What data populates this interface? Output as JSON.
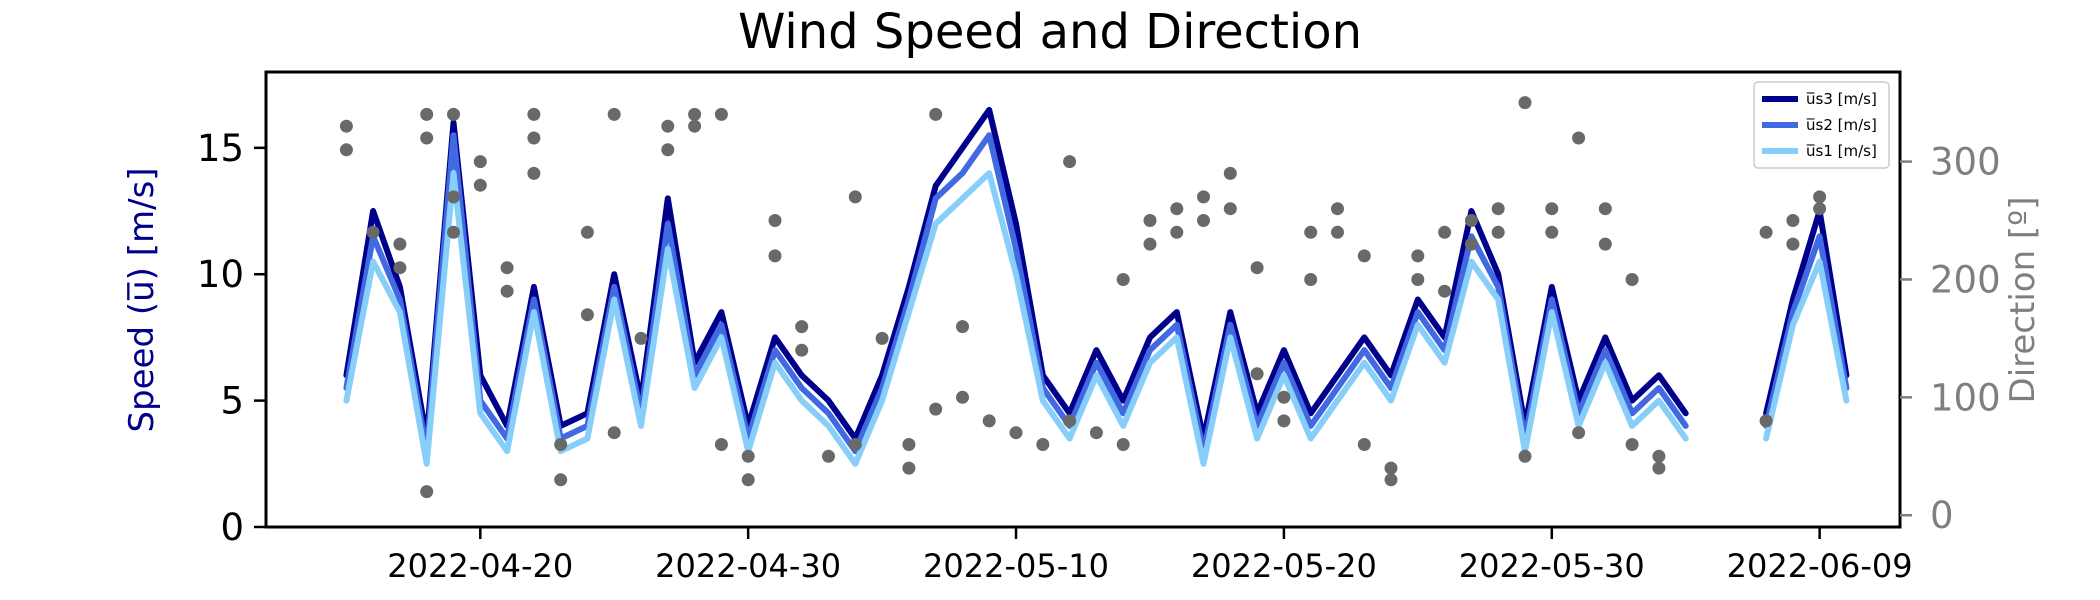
{
  "chart_data": {
    "type": "line",
    "title": "Wind Speed and Direction",
    "xlabel": "",
    "ylabel": "Speed (u̅) [m/s]",
    "ylabel_right": "Direction [º]",
    "x_ticks": [
      "2022-04-20",
      "2022-04-30",
      "2022-05-10",
      "2022-05-20",
      "2022-05-30",
      "2022-06-09"
    ],
    "x_range": [
      "2022-04-12",
      "2022-06-12"
    ],
    "ylim": [
      0,
      18
    ],
    "y_ticks": [
      0,
      5,
      10,
      15
    ],
    "ylim_right": [
      -10,
      376
    ],
    "y_ticks_right": [
      0,
      100,
      200,
      300
    ],
    "grid": false,
    "legend_position": "top-right",
    "legend": [
      {
        "label": "u̅s3 [m/s]",
        "color": "#00008b"
      },
      {
        "label": "u̅s2 [m/s]",
        "color": "#4169e1"
      },
      {
        "label": "u̅s1 [m/s]",
        "color": "#87cefa"
      }
    ],
    "series": [
      {
        "name": "u̅s3 [m/s]",
        "color": "#00008b",
        "axis": "left",
        "x": [
          "2022-04-15",
          "2022-04-16",
          "2022-04-17",
          "2022-04-18",
          "2022-04-19",
          "2022-04-20",
          "2022-04-21",
          "2022-04-22",
          "2022-04-23",
          "2022-04-24",
          "2022-04-25",
          "2022-04-26",
          "2022-04-27",
          "2022-04-28",
          "2022-04-29",
          "2022-04-30",
          "2022-05-01",
          "2022-05-02",
          "2022-05-03",
          "2022-05-04",
          "2022-05-05",
          "2022-05-06",
          "2022-05-07",
          "2022-05-08",
          "2022-05-09",
          "2022-05-10",
          "2022-05-11",
          "2022-05-12",
          "2022-05-13",
          "2022-05-14",
          "2022-05-15",
          "2022-05-16",
          "2022-05-17",
          "2022-05-18",
          "2022-05-19",
          "2022-05-20",
          "2022-05-21",
          "2022-05-22",
          "2022-05-23",
          "2022-05-24",
          "2022-05-25",
          "2022-05-26",
          "2022-05-27",
          "2022-05-28",
          "2022-05-29",
          "2022-05-30",
          "2022-05-31",
          "2022-06-01",
          "2022-06-02",
          "2022-06-03",
          "2022-06-04",
          null,
          "2022-06-07",
          "2022-06-08",
          "2022-06-09",
          "2022-06-10"
        ],
        "values": [
          6,
          12.5,
          9.5,
          3.5,
          16,
          6,
          4,
          9.5,
          4,
          4.5,
          10,
          5,
          13,
          6.5,
          8.5,
          4,
          7.5,
          6,
          5,
          3.5,
          6,
          9.5,
          13.5,
          15,
          16.5,
          12,
          6,
          4.5,
          7,
          5,
          7.5,
          8.5,
          3.5,
          8.5,
          4.5,
          7,
          4.5,
          6,
          7.5,
          6,
          9,
          7.5,
          12.5,
          10,
          4,
          9.5,
          5,
          7.5,
          5,
          6,
          4.5,
          null,
          4.5,
          9,
          12.5,
          6
        ]
      },
      {
        "name": "u̅s2 [m/s]",
        "color": "#4169e1",
        "axis": "left",
        "x": [
          "2022-04-15",
          "2022-04-16",
          "2022-04-17",
          "2022-04-18",
          "2022-04-19",
          "2022-04-20",
          "2022-04-21",
          "2022-04-22",
          "2022-04-23",
          "2022-04-24",
          "2022-04-25",
          "2022-04-26",
          "2022-04-27",
          "2022-04-28",
          "2022-04-29",
          "2022-04-30",
          "2022-05-01",
          "2022-05-02",
          "2022-05-03",
          "2022-05-04",
          "2022-05-05",
          "2022-05-06",
          "2022-05-07",
          "2022-05-08",
          "2022-05-09",
          "2022-05-10",
          "2022-05-11",
          "2022-05-12",
          "2022-05-13",
          "2022-05-14",
          "2022-05-15",
          "2022-05-16",
          "2022-05-17",
          "2022-05-18",
          "2022-05-19",
          "2022-05-20",
          "2022-05-21",
          "2022-05-22",
          "2022-05-23",
          "2022-05-24",
          "2022-05-25",
          "2022-05-26",
          "2022-05-27",
          "2022-05-28",
          "2022-05-29",
          "2022-05-30",
          "2022-05-31",
          "2022-06-01",
          "2022-06-02",
          "2022-06-03",
          "2022-06-04",
          null,
          "2022-06-07",
          "2022-06-08",
          "2022-06-09",
          "2022-06-10"
        ],
        "values": [
          5.5,
          11.5,
          9,
          3,
          15.5,
          5,
          3.5,
          9,
          3.5,
          4,
          9.5,
          4.5,
          12,
          6,
          8,
          3.5,
          7,
          5.5,
          4.5,
          3,
          5.5,
          9,
          13,
          14,
          15.5,
          11,
          5.5,
          4,
          6.5,
          4.5,
          7,
          8,
          3,
          8,
          4,
          6.5,
          4,
          5.5,
          7,
          5.5,
          8.5,
          7,
          11.5,
          9.5,
          3.5,
          9,
          4.5,
          7,
          4.5,
          5.5,
          4,
          null,
          4,
          8.5,
          11.5,
          5.5
        ]
      },
      {
        "name": "u̅s1 [m/s]",
        "color": "#87cefa",
        "axis": "left",
        "x": [
          "2022-04-15",
          "2022-04-16",
          "2022-04-17",
          "2022-04-18",
          "2022-04-19",
          "2022-04-20",
          "2022-04-21",
          "2022-04-22",
          "2022-04-23",
          "2022-04-24",
          "2022-04-25",
          "2022-04-26",
          "2022-04-27",
          "2022-04-28",
          "2022-04-29",
          "2022-04-30",
          "2022-05-01",
          "2022-05-02",
          "2022-05-03",
          "2022-05-04",
          "2022-05-05",
          "2022-05-06",
          "2022-05-07",
          "2022-05-08",
          "2022-05-09",
          "2022-05-10",
          "2022-05-11",
          "2022-05-12",
          "2022-05-13",
          "2022-05-14",
          "2022-05-15",
          "2022-05-16",
          "2022-05-17",
          "2022-05-18",
          "2022-05-19",
          "2022-05-20",
          "2022-05-21",
          "2022-05-22",
          "2022-05-23",
          "2022-05-24",
          "2022-05-25",
          "2022-05-26",
          "2022-05-27",
          "2022-05-28",
          "2022-05-29",
          "2022-05-30",
          "2022-05-31",
          "2022-06-01",
          "2022-06-02",
          "2022-06-03",
          "2022-06-04",
          null,
          "2022-06-07",
          "2022-06-08",
          "2022-06-09",
          "2022-06-10"
        ],
        "values": [
          5,
          10.5,
          8.5,
          2.5,
          14,
          4.5,
          3,
          8.5,
          3,
          3.5,
          9,
          4,
          11,
          5.5,
          7.5,
          3,
          6.5,
          5,
          4,
          2.5,
          5,
          8.5,
          12,
          13,
          14,
          10,
          5,
          3.5,
          6,
          4,
          6.5,
          7.5,
          2.5,
          7.5,
          3.5,
          6,
          3.5,
          5,
          6.5,
          5,
          8,
          6.5,
          10.5,
          9,
          3,
          8.5,
          4,
          6.5,
          4,
          5,
          3.5,
          null,
          3.5,
          8,
          10.5,
          5
        ]
      }
    ],
    "scatter": {
      "name": "Direction",
      "color": "#696969",
      "axis": "right",
      "points": [
        [
          "2022-04-15",
          330
        ],
        [
          "2022-04-15",
          310
        ],
        [
          "2022-04-16",
          240
        ],
        [
          "2022-04-17",
          230
        ],
        [
          "2022-04-17",
          210
        ],
        [
          "2022-04-18",
          320
        ],
        [
          "2022-04-18",
          340
        ],
        [
          "2022-04-18",
          20
        ],
        [
          "2022-04-19",
          340
        ],
        [
          "2022-04-19",
          270
        ],
        [
          "2022-04-19",
          240
        ],
        [
          "2022-04-20",
          280
        ],
        [
          "2022-04-20",
          300
        ],
        [
          "2022-04-21",
          210
        ],
        [
          "2022-04-21",
          190
        ],
        [
          "2022-04-22",
          290
        ],
        [
          "2022-04-22",
          320
        ],
        [
          "2022-04-22",
          340
        ],
        [
          "2022-04-23",
          30
        ],
        [
          "2022-04-23",
          60
        ],
        [
          "2022-04-24",
          240
        ],
        [
          "2022-04-24",
          170
        ],
        [
          "2022-04-25",
          340
        ],
        [
          "2022-04-25",
          70
        ],
        [
          "2022-04-26",
          150
        ],
        [
          "2022-04-27",
          330
        ],
        [
          "2022-04-27",
          310
        ],
        [
          "2022-04-28",
          330
        ],
        [
          "2022-04-28",
          340
        ],
        [
          "2022-04-29",
          340
        ],
        [
          "2022-04-29",
          60
        ],
        [
          "2022-04-30",
          30
        ],
        [
          "2022-04-30",
          50
        ],
        [
          "2022-05-01",
          250
        ],
        [
          "2022-05-01",
          220
        ],
        [
          "2022-05-02",
          160
        ],
        [
          "2022-05-02",
          140
        ],
        [
          "2022-05-03",
          50
        ],
        [
          "2022-05-04",
          270
        ],
        [
          "2022-05-04",
          60
        ],
        [
          "2022-05-05",
          150
        ],
        [
          "2022-05-06",
          40
        ],
        [
          "2022-05-06",
          60
        ],
        [
          "2022-05-07",
          340
        ],
        [
          "2022-05-07",
          90
        ],
        [
          "2022-05-08",
          100
        ],
        [
          "2022-05-08",
          160
        ],
        [
          "2022-05-09",
          80
        ],
        [
          "2022-05-10",
          70
        ],
        [
          "2022-05-11",
          60
        ],
        [
          "2022-05-12",
          80
        ],
        [
          "2022-05-12",
          300
        ],
        [
          "2022-05-13",
          70
        ],
        [
          "2022-05-14",
          60
        ],
        [
          "2022-05-14",
          200
        ],
        [
          "2022-05-15",
          230
        ],
        [
          "2022-05-15",
          250
        ],
        [
          "2022-05-16",
          260
        ],
        [
          "2022-05-16",
          240
        ],
        [
          "2022-05-17",
          270
        ],
        [
          "2022-05-17",
          250
        ],
        [
          "2022-05-18",
          290
        ],
        [
          "2022-05-18",
          260
        ],
        [
          "2022-05-19",
          210
        ],
        [
          "2022-05-19",
          120
        ],
        [
          "2022-05-20",
          100
        ],
        [
          "2022-05-20",
          80
        ],
        [
          "2022-05-21",
          240
        ],
        [
          "2022-05-21",
          200
        ],
        [
          "2022-05-22",
          260
        ],
        [
          "2022-05-22",
          240
        ],
        [
          "2022-05-23",
          220
        ],
        [
          "2022-05-23",
          60
        ],
        [
          "2022-05-24",
          40
        ],
        [
          "2022-05-24",
          30
        ],
        [
          "2022-05-25",
          200
        ],
        [
          "2022-05-25",
          220
        ],
        [
          "2022-05-26",
          240
        ],
        [
          "2022-05-26",
          190
        ],
        [
          "2022-05-27",
          230
        ],
        [
          "2022-05-27",
          250
        ],
        [
          "2022-05-28",
          240
        ],
        [
          "2022-05-28",
          260
        ],
        [
          "2022-05-29",
          350
        ],
        [
          "2022-05-29",
          50
        ],
        [
          "2022-05-30",
          240
        ],
        [
          "2022-05-30",
          260
        ],
        [
          "2022-05-31",
          320
        ],
        [
          "2022-05-31",
          70
        ],
        [
          "2022-06-01",
          260
        ],
        [
          "2022-06-01",
          230
        ],
        [
          "2022-06-02",
          200
        ],
        [
          "2022-06-02",
          60
        ],
        [
          "2022-06-03",
          40
        ],
        [
          "2022-06-03",
          50
        ],
        [
          "2022-06-07",
          80
        ],
        [
          "2022-06-07",
          240
        ],
        [
          "2022-06-08",
          250
        ],
        [
          "2022-06-08",
          230
        ],
        [
          "2022-06-09",
          270
        ],
        [
          "2022-06-09",
          260
        ]
      ]
    }
  }
}
